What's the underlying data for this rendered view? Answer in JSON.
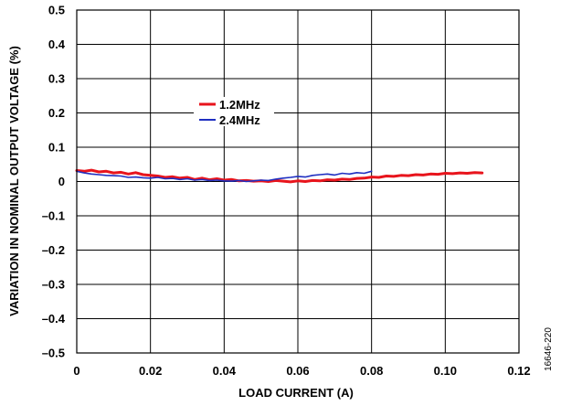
{
  "chart_data": {
    "type": "line",
    "xlabel": "LOAD CURRENT (A)",
    "ylabel": "VARIATION IN NOMINAL OUTPUT VOLTAGE (%)",
    "xlim": [
      0,
      0.12
    ],
    "ylim": [
      -0.5,
      0.5
    ],
    "xticks": [
      0,
      0.02,
      0.04,
      0.06,
      0.08,
      0.1,
      0.12
    ],
    "xtick_labels": [
      "0",
      "0.02",
      "0.04",
      "0.06",
      "0.08",
      "0.10",
      "0.12"
    ],
    "yticks": [
      -0.5,
      -0.4,
      -0.3,
      -0.2,
      -0.1,
      0,
      0.1,
      0.2,
      0.3,
      0.4,
      0.5
    ],
    "ytick_labels": [
      "–0.5",
      "–0.4",
      "–0.3",
      "–0.2",
      "–0.1",
      "0",
      "0.1",
      "0.2",
      "0.3",
      "0.4",
      "0.5"
    ],
    "grid": true,
    "legend_position": "center-left",
    "series": [
      {
        "name": "1.2MHz",
        "color": "#e8141c",
        "x": [
          0,
          0.002,
          0.004,
          0.006,
          0.008,
          0.01,
          0.012,
          0.014,
          0.016,
          0.018,
          0.02,
          0.022,
          0.024,
          0.026,
          0.028,
          0.03,
          0.032,
          0.034,
          0.036,
          0.038,
          0.04,
          0.042,
          0.044,
          0.046,
          0.048,
          0.05,
          0.052,
          0.054,
          0.056,
          0.058,
          0.06,
          0.062,
          0.064,
          0.066,
          0.068,
          0.07,
          0.072,
          0.074,
          0.076,
          0.078,
          0.08,
          0.082,
          0.084,
          0.086,
          0.088,
          0.09,
          0.092,
          0.094,
          0.096,
          0.098,
          0.1,
          0.102,
          0.104,
          0.106,
          0.108,
          0.11
        ],
        "y": [
          0.032,
          0.03,
          0.033,
          0.028,
          0.03,
          0.025,
          0.027,
          0.022,
          0.026,
          0.02,
          0.018,
          0.016,
          0.012,
          0.014,
          0.01,
          0.012,
          0.006,
          0.01,
          0.005,
          0.008,
          0.004,
          0.006,
          0.002,
          0.003,
          0.001,
          0.002,
          0.0,
          0.003,
          0.001,
          -0.001,
          0.002,
          0.0,
          0.003,
          0.002,
          0.005,
          0.004,
          0.007,
          0.006,
          0.009,
          0.01,
          0.013,
          0.012,
          0.016,
          0.015,
          0.018,
          0.017,
          0.02,
          0.019,
          0.022,
          0.021,
          0.024,
          0.023,
          0.025,
          0.024,
          0.026,
          0.025
        ]
      },
      {
        "name": "2.4MHz",
        "color": "#1f2fc1",
        "x": [
          0,
          0.002,
          0.004,
          0.006,
          0.008,
          0.01,
          0.012,
          0.014,
          0.016,
          0.018,
          0.02,
          0.022,
          0.024,
          0.026,
          0.028,
          0.03,
          0.032,
          0.034,
          0.036,
          0.038,
          0.04,
          0.042,
          0.044,
          0.046,
          0.048,
          0.05,
          0.052,
          0.054,
          0.056,
          0.058,
          0.06,
          0.062,
          0.064,
          0.066,
          0.068,
          0.07,
          0.072,
          0.074,
          0.076,
          0.078,
          0.08
        ],
        "y": [
          0.03,
          0.025,
          0.022,
          0.02,
          0.018,
          0.017,
          0.016,
          0.012,
          0.013,
          0.011,
          0.01,
          0.012,
          0.008,
          0.009,
          0.006,
          0.008,
          0.004,
          0.006,
          0.003,
          0.004,
          0.002,
          0.001,
          0.003,
          0.0,
          0.002,
          0.004,
          0.003,
          0.007,
          0.01,
          0.012,
          0.015,
          0.013,
          0.018,
          0.02,
          0.022,
          0.019,
          0.024,
          0.022,
          0.026,
          0.024,
          0.03
        ]
      }
    ]
  },
  "figure_id": "16646-220"
}
